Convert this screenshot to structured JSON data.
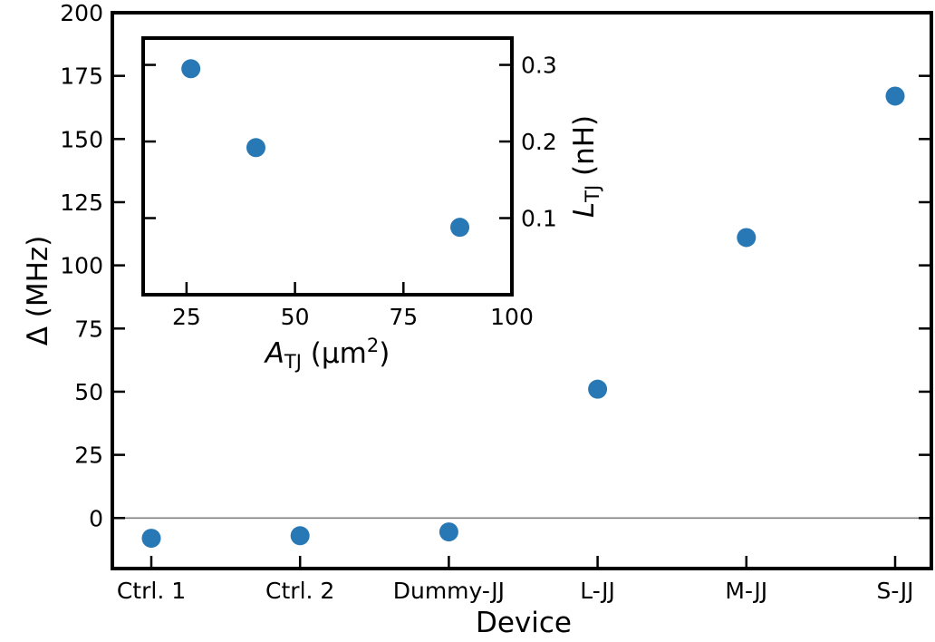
{
  "chart_data": [
    {
      "type": "scatter",
      "role": "main",
      "categories": [
        "Ctrl. 1",
        "Ctrl. 2",
        "Dummy-JJ",
        "L-JJ",
        "M-JJ",
        "S-JJ"
      ],
      "values": [
        -8,
        -7,
        -5.5,
        51,
        111,
        167
      ],
      "xlabel": "Device",
      "ylabel": "Δ (MHz)",
      "ylim": [
        -20,
        200
      ],
      "yticks": [
        0,
        25,
        50,
        75,
        100,
        125,
        150,
        175,
        200
      ],
      "reference_line": 0,
      "grid": false,
      "color": "#2878b5"
    },
    {
      "type": "scatter",
      "role": "inset",
      "x": [
        26,
        41,
        88
      ],
      "y": [
        0.295,
        0.192,
        0.088
      ],
      "xlabel": "A_TJ (μm²)",
      "ylabel": "L_TJ (nH)",
      "xlim": [
        15,
        100
      ],
      "ylim": [
        0.0,
        0.335
      ],
      "xticks": [
        25,
        50,
        75,
        100
      ],
      "yticks": [
        0.1,
        0.2,
        0.3
      ],
      "ytick_labels": [
        "0.1",
        "0.2",
        "0.3"
      ],
      "grid": false,
      "color": "#2878b5"
    }
  ]
}
